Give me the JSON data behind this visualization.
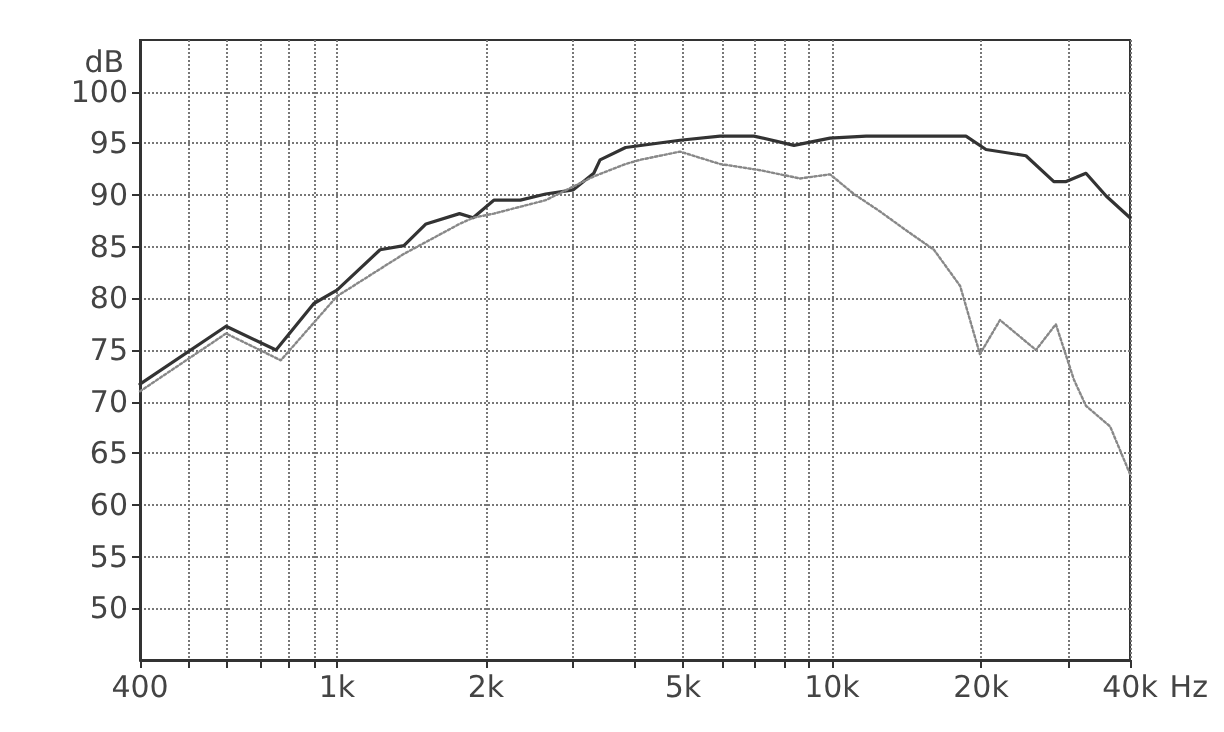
{
  "chart_data": {
    "type": "line",
    "ylabel": "dB",
    "xlim": [
      400,
      40000
    ],
    "ylim": [
      45,
      105
    ],
    "log": "x",
    "grid": true,
    "marker": "none",
    "xticks": [
      400,
      {
        "value": 500,
        "label": null
      },
      {
        "value": 600,
        "label": null
      },
      {
        "value": 700,
        "label": null
      },
      {
        "value": 800,
        "label": null
      },
      {
        "value": 900,
        "label": null
      },
      {
        "value": 1000,
        "label": "1k"
      },
      {
        "value": 2000,
        "label": "2k"
      },
      {
        "value": 3000,
        "label": null
      },
      {
        "value": 4000,
        "label": null
      },
      {
        "value": 5000,
        "label": "5k"
      },
      {
        "value": 6000,
        "label": null
      },
      {
        "value": 7000,
        "label": null
      },
      {
        "value": 8000,
        "label": null
      },
      {
        "value": 9000,
        "label": null
      },
      {
        "value": 10000,
        "label": "10k"
      },
      {
        "value": 20000,
        "label": "20k"
      },
      {
        "value": 30000,
        "label": null
      },
      {
        "value": 40000,
        "label": "40k"
      }
    ],
    "xlabel": "Hz",
    "yticks": [
      50,
      55,
      60,
      65,
      70,
      75,
      80,
      85,
      90,
      95,
      100
    ],
    "series": [
      {
        "color": "#333333",
        "line_style": "solid",
        "x": [
          400,
          597,
          753,
          898,
          1000,
          1222,
          1365,
          1513,
          1768,
          1884,
          2074,
          2347,
          2640,
          3002,
          3302,
          3400,
          3829,
          4932,
          5942,
          6955,
          8380,
          9910,
          11720,
          15050,
          18650,
          20470,
          24650,
          28070,
          29720,
          32590,
          35800,
          40000
        ],
        "values": [
          71.7,
          77.3,
          75.0,
          79.5,
          80.8,
          84.7,
          85.1,
          87.2,
          88.2,
          87.8,
          89.5,
          89.5,
          90.1,
          90.5,
          92.1,
          93.4,
          94.6,
          95.3,
          95.7,
          95.7,
          94.8,
          95.5,
          95.7,
          95.7,
          95.7,
          94.4,
          93.8,
          91.3,
          91.3,
          92.1,
          89.9,
          87.8
        ]
      },
      {
        "color": "#888888",
        "line_style": "dotted",
        "x": [
          400,
          597,
          770,
          1000,
          1365,
          1768,
          1884,
          2074,
          2640,
          3302,
          3829,
          4093,
          4932,
          5942,
          7160,
          8620,
          9910,
          11070,
          12510,
          14100,
          16070,
          18150,
          19900,
          21850,
          25830,
          28330,
          30830,
          32590,
          36470,
          40000
        ],
        "values": [
          71.0,
          76.6,
          74.0,
          80.2,
          84.3,
          87.2,
          87.8,
          88.2,
          89.5,
          91.8,
          93.0,
          93.4,
          94.2,
          93.0,
          92.4,
          91.6,
          92.0,
          90.1,
          88.4,
          86.6,
          84.7,
          81.2,
          74.6,
          77.9,
          75.0,
          77.5,
          72.1,
          69.6,
          67.6,
          63.0
        ]
      }
    ]
  }
}
